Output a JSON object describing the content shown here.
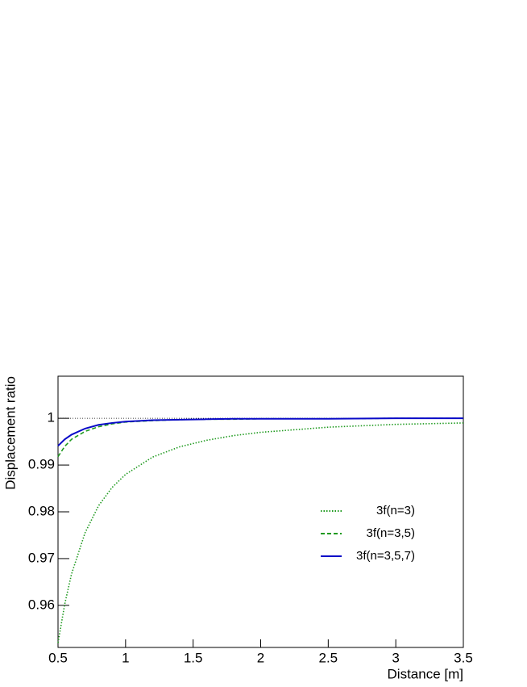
{
  "chart_data": {
    "type": "line",
    "xlabel": "Distance [m]",
    "ylabel": "Displacement ratio",
    "x": [
      0.5,
      0.55,
      0.6,
      0.7,
      0.8,
      0.9,
      1,
      1.2,
      1.4,
      1.6,
      1.8,
      2,
      2.5,
      3,
      3.5
    ],
    "series": [
      {
        "name": "3f(n=3)",
        "color": "#1f9a1f",
        "linestyle": "dotted",
        "values": [
          0.952,
          0.9603,
          0.9667,
          0.9755,
          0.9813,
          0.9852,
          0.988,
          0.9917,
          0.9939,
          0.9953,
          0.9963,
          0.997,
          0.9981,
          0.9987,
          0.999
        ]
      },
      {
        "name": "3f(n=3,5)",
        "color": "#1f9a1f",
        "linestyle": "dashed",
        "values": [
          0.9918,
          0.994,
          0.9955,
          0.9972,
          0.9982,
          0.9988,
          0.9992,
          0.9995,
          0.9997,
          0.9998,
          0.9998,
          0.9999,
          0.9999,
          1.0,
          1.0
        ]
      },
      {
        "name": "3f(n=3,5,7)",
        "color": "#0a0ac8",
        "linestyle": "solid",
        "values": [
          0.9941,
          0.9955,
          0.9965,
          0.9978,
          0.9986,
          0.999,
          0.9993,
          0.9996,
          0.9997,
          0.9998,
          0.9999,
          0.9999,
          0.9999,
          1.0,
          1.0
        ]
      }
    ],
    "reference_line": 1,
    "xlim": [
      0.5,
      3.5
    ],
    "xticks": [
      0.5,
      1,
      1.5,
      2,
      2.5,
      3,
      3.5
    ],
    "ylim": [
      0.951,
      1.009
    ],
    "yticks": [
      0.96,
      0.97,
      0.98,
      0.99,
      1
    ]
  }
}
